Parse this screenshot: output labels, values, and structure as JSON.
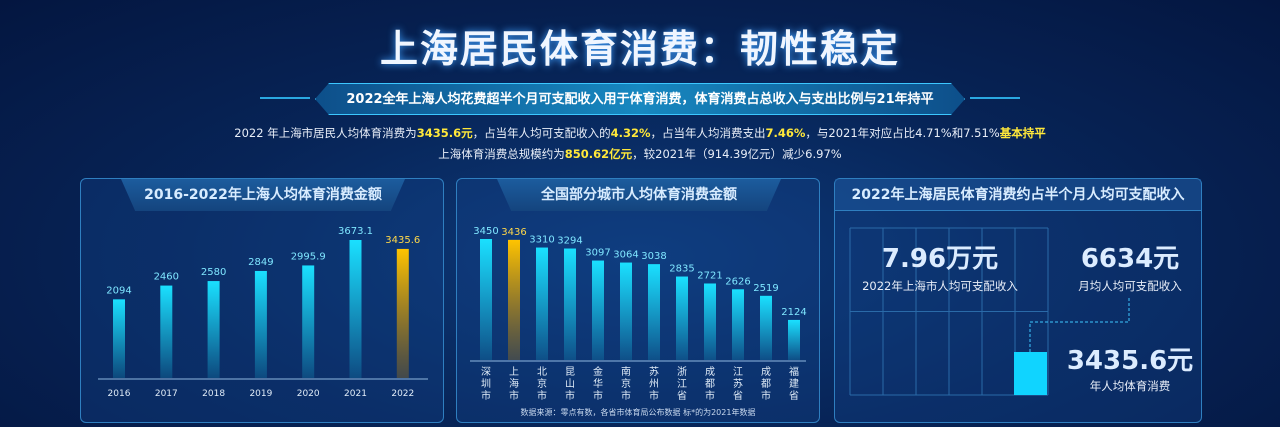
{
  "title": "上海居民体育消费：韧性稳定",
  "banner": "2022全年上海人均花费超半个月可支配收入用于体育消费，体育消费占总收入与支出比例与21年持平",
  "summary": {
    "l1a": "2022 年上海市居民人均体育消费为",
    "l1b": "3435.6元",
    "l1c": "，占当年人均可支配收入的",
    "l1d": "4.32%",
    "l1e": "，占当年人均消费支出",
    "l1f": "7.46%",
    "l1g": "，与2021年对应占比4.71%和7.51%",
    "l1h": "基本持平",
    "l2a": "上海体育消费总规模约为",
    "l2b": "850.62亿元",
    "l2c": "，较2021年（914.39亿元）减少6.97%"
  },
  "colors": {
    "bar": "#1ad0f5",
    "highlight": "#f0b400"
  },
  "chart_data": [
    {
      "type": "bar",
      "title": "2016-2022年上海人均体育消费金额",
      "categories": [
        "2016",
        "2017",
        "2018",
        "2019",
        "2020",
        "2021",
        "2022"
      ],
      "values": [
        2094,
        2460,
        2580,
        2849,
        2995.9,
        3673.1,
        3435.6
      ],
      "labels": [
        "2094",
        "2460",
        "2580",
        "2849",
        "2995.9",
        "3673.1",
        "3435.6"
      ],
      "highlight": "2022",
      "ylim": [
        0,
        3673.1
      ]
    },
    {
      "type": "bar",
      "title": "全国部分城市人均体育消费金额",
      "categories": [
        "深圳市",
        "上海市",
        "北京市",
        "昆山市",
        "金华市",
        "南京市",
        "苏州市",
        "浙江省",
        "成都市",
        "江苏省",
        "成都市",
        "福建省"
      ],
      "values": [
        3450,
        3436,
        3310,
        3294,
        3097,
        3064,
        3038,
        2835,
        2721,
        2626,
        2519,
        2124
      ],
      "highlight": "上海市",
      "ylim": [
        1500,
        3450
      ],
      "note": "数据来源：零点有数，各省市体育局公布数据 标*的为2021年数据"
    }
  ],
  "right": {
    "title": "2022年上海居民体育消费约占半个月人均可支配收入",
    "v1": "7.96万元",
    "c1": "2022年上海市人均可支配收入",
    "v2": "6634元",
    "c2": "月均人均可支配收入",
    "v3": "3435.6元",
    "c3": "年人均体育消费"
  }
}
